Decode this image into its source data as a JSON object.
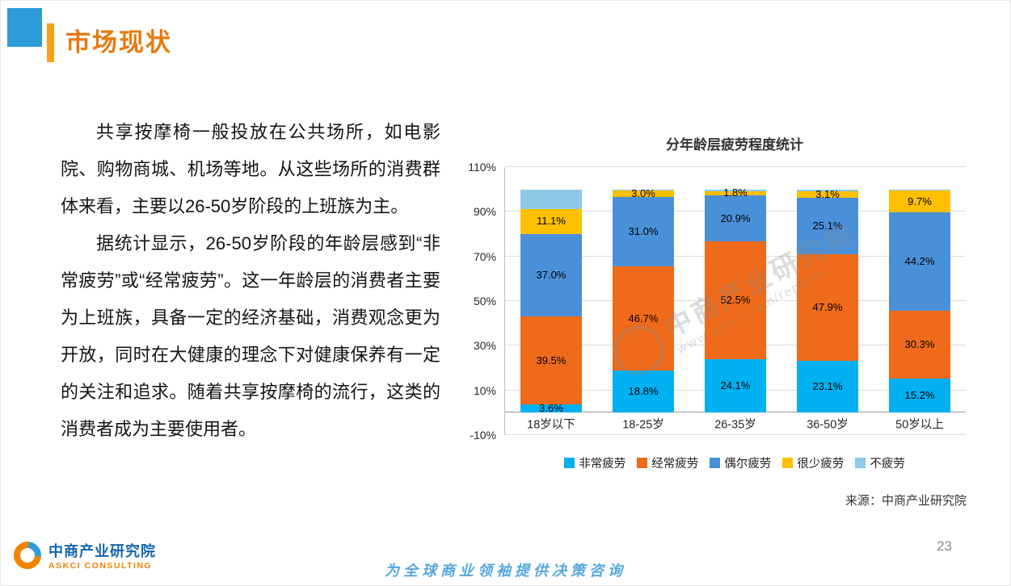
{
  "header": {
    "title": "市场现状"
  },
  "content": {
    "paragraphs": [
      "共享按摩椅一般投放在公共场所，如电影院、购物商城、机场等地。从这些场所的消费群体来看，主要以26-50岁阶段的上班族为主。",
      "据统计显示，26-50岁阶段的年龄层感到“非常疲劳”或“经常疲劳”。这一年龄层的消费者主要为上班族，具备一定的经济基础，消费观念更为开放，同时在大健康的理念下对健康保养有一定的关注和追求。随着共享按摩椅的流行，这类的消费者成为主要使用者。"
    ]
  },
  "chart_data": {
    "type": "bar",
    "stacked": true,
    "title": "分年龄层疲劳程度统计",
    "categories": [
      "18岁以下",
      "18-25岁",
      "26-35岁",
      "36-50岁",
      "50岁以上"
    ],
    "series": [
      {
        "name": "非常疲劳",
        "color": "#00B0F0",
        "values": [
          3.6,
          18.8,
          24.1,
          23.1,
          15.2
        ],
        "labels_visible": true
      },
      {
        "name": "经常疲劳",
        "color": "#EF6A1A",
        "values": [
          39.5,
          46.7,
          52.5,
          47.9,
          30.3
        ],
        "labels_visible": true
      },
      {
        "name": "偶尔疲劳",
        "color": "#4A90D9",
        "values": [
          37.0,
          31.0,
          20.9,
          25.1,
          44.2
        ],
        "labels_visible": true
      },
      {
        "name": "很少疲劳",
        "color": "#FFC000",
        "values": [
          11.1,
          3.0,
          1.8,
          3.1,
          9.7
        ],
        "labels_visible": true
      },
      {
        "name": "不疲劳",
        "color": "#8FC9E9",
        "values": [
          8.8,
          0.5,
          0.7,
          0.8,
          0.6
        ],
        "labels_visible": false
      }
    ],
    "ylim": [
      -10,
      110
    ],
    "yticks": [
      110,
      90,
      70,
      50,
      30,
      10,
      -10
    ],
    "grid": true,
    "legend_position": "bottom",
    "source": "来源：中商产业研究院",
    "watermark": {
      "line1": "中商产业研究院",
      "line2": "www.askci.com/reports/"
    }
  },
  "footer": {
    "logo_title": "中商产业研究院",
    "logo_subtitle": "ASKCI CONSULTING",
    "slogan": "为全球商业领袖提供决策咨询",
    "page_number": "23"
  }
}
